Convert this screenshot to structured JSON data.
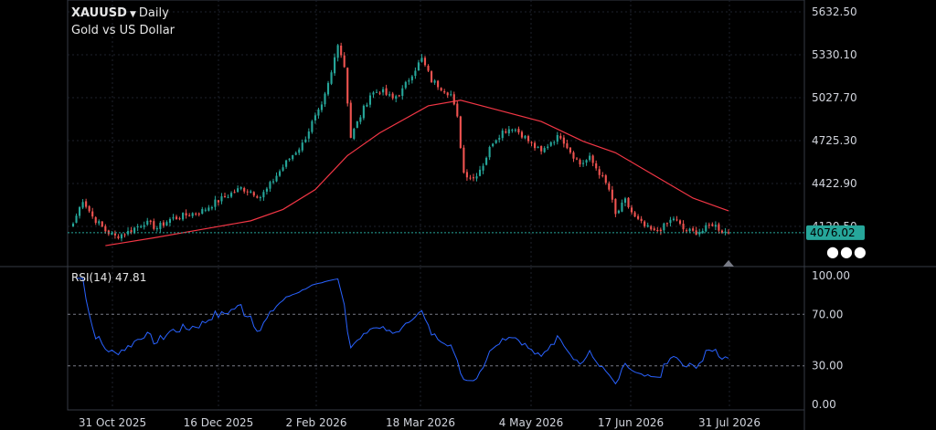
{
  "header": {
    "symbol": "XAUUSD",
    "interval": "Daily",
    "description": "Gold vs US Dollar",
    "dropdown_icon": "caret-down-icon"
  },
  "price_axis": {
    "labels": [
      "5632.50",
      "5330.10",
      "5027.70",
      "4725.30",
      "4422.90",
      "4120.50"
    ],
    "current_price": "4076.02",
    "current_color": "#26a69a"
  },
  "rsi": {
    "label": "RSI(14)",
    "value": "47.81",
    "levels": [
      "100.00",
      "70.00",
      "30.00",
      "0.00"
    ],
    "color": "#2962ff"
  },
  "time_axis": {
    "labels": [
      "31 Oct 2025",
      "16 Dec 2025",
      "2 Feb 2026",
      "18 Mar 2026",
      "4 May 2026",
      "17 Jun 2026",
      "31 Jul 2026"
    ]
  },
  "colors": {
    "up": "#26a69a",
    "down": "#ef5350",
    "ma": "#f23645",
    "rsi_line": "#2962ff"
  },
  "chart_data": {
    "type": "candlestick",
    "ylim": [
      3980,
      5632.5
    ],
    "current_price": 4076.02,
    "anchors": [
      {
        "i": 0,
        "c": 4140
      },
      {
        "i": 3,
        "c": 4310
      },
      {
        "i": 6,
        "c": 4190
      },
      {
        "i": 10,
        "c": 4090
      },
      {
        "i": 13,
        "c": 4050
      },
      {
        "i": 17,
        "c": 4080
      },
      {
        "i": 22,
        "c": 4150
      },
      {
        "i": 26,
        "c": 4110
      },
      {
        "i": 30,
        "c": 4170
      },
      {
        "i": 35,
        "c": 4200
      },
      {
        "i": 40,
        "c": 4230
      },
      {
        "i": 44,
        "c": 4290
      },
      {
        "i": 48,
        "c": 4340
      },
      {
        "i": 52,
        "c": 4390
      },
      {
        "i": 55,
        "c": 4370
      },
      {
        "i": 58,
        "c": 4330
      },
      {
        "i": 60,
        "c": 4380
      },
      {
        "i": 63,
        "c": 4480
      },
      {
        "i": 67,
        "c": 4600
      },
      {
        "i": 71,
        "c": 4700
      },
      {
        "i": 74,
        "c": 4850
      },
      {
        "i": 77,
        "c": 4960
      },
      {
        "i": 80,
        "c": 5200
      },
      {
        "i": 82,
        "c": 5420
      },
      {
        "i": 84,
        "c": 5250
      },
      {
        "i": 86,
        "c": 4750
      },
      {
        "i": 89,
        "c": 4900
      },
      {
        "i": 92,
        "c": 5050
      },
      {
        "i": 95,
        "c": 5080
      },
      {
        "i": 99,
        "c": 5020
      },
      {
        "i": 102,
        "c": 5080
      },
      {
        "i": 105,
        "c": 5200
      },
      {
        "i": 108,
        "c": 5300
      },
      {
        "i": 111,
        "c": 5150
      },
      {
        "i": 114,
        "c": 5100
      },
      {
        "i": 117,
        "c": 5050
      },
      {
        "i": 119,
        "c": 4880
      },
      {
        "i": 121,
        "c": 4500
      },
      {
        "i": 124,
        "c": 4460
      },
      {
        "i": 127,
        "c": 4560
      },
      {
        "i": 130,
        "c": 4720
      },
      {
        "i": 133,
        "c": 4790
      },
      {
        "i": 136,
        "c": 4820
      },
      {
        "i": 139,
        "c": 4770
      },
      {
        "i": 142,
        "c": 4700
      },
      {
        "i": 145,
        "c": 4640
      },
      {
        "i": 148,
        "c": 4720
      },
      {
        "i": 151,
        "c": 4760
      },
      {
        "i": 154,
        "c": 4650
      },
      {
        "i": 157,
        "c": 4560
      },
      {
        "i": 160,
        "c": 4600
      },
      {
        "i": 163,
        "c": 4500
      },
      {
        "i": 166,
        "c": 4380
      },
      {
        "i": 168,
        "c": 4200
      },
      {
        "i": 171,
        "c": 4300
      },
      {
        "i": 174,
        "c": 4180
      },
      {
        "i": 177,
        "c": 4120
      },
      {
        "i": 180,
        "c": 4080
      },
      {
        "i": 183,
        "c": 4120
      },
      {
        "i": 186,
        "c": 4180
      },
      {
        "i": 189,
        "c": 4100
      },
      {
        "i": 192,
        "c": 4080
      },
      {
        "i": 195,
        "c": 4090
      },
      {
        "i": 198,
        "c": 4140
      },
      {
        "i": 201,
        "c": 4090
      },
      {
        "i": 203,
        "c": 4076
      }
    ],
    "ma_anchors": [
      {
        "i": 10,
        "v": 3985
      },
      {
        "i": 25,
        "v": 4040
      },
      {
        "i": 40,
        "v": 4100
      },
      {
        "i": 55,
        "v": 4160
      },
      {
        "i": 65,
        "v": 4240
      },
      {
        "i": 75,
        "v": 4380
      },
      {
        "i": 85,
        "v": 4620
      },
      {
        "i": 95,
        "v": 4780
      },
      {
        "i": 110,
        "v": 4970
      },
      {
        "i": 120,
        "v": 5010
      },
      {
        "i": 130,
        "v": 4950
      },
      {
        "i": 145,
        "v": 4860
      },
      {
        "i": 158,
        "v": 4720
      },
      {
        "i": 168,
        "v": 4640
      },
      {
        "i": 180,
        "v": 4480
      },
      {
        "i": 192,
        "v": 4320
      },
      {
        "i": 203,
        "v": 4230
      }
    ]
  }
}
